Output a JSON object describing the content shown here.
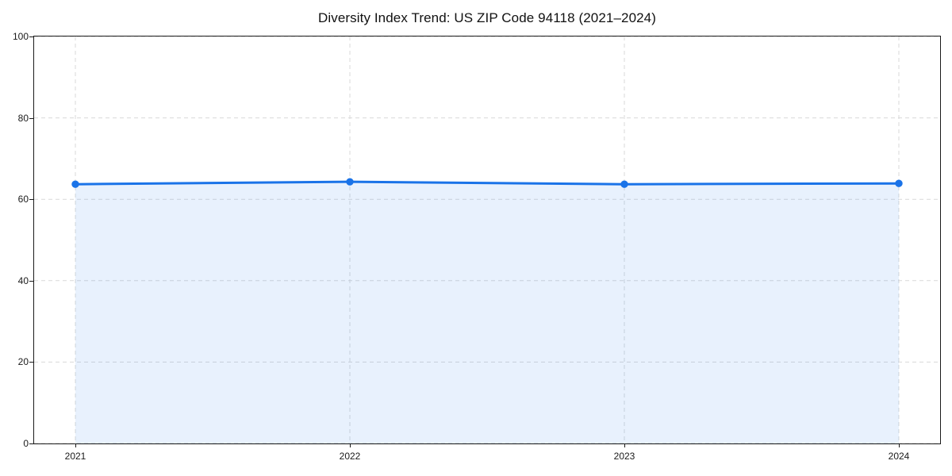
{
  "chart_data": {
    "type": "area",
    "title": "Diversity Index Trend: US ZIP Code 94118 (2021–2024)",
    "x": [
      "2021",
      "2022",
      "2023",
      "2024"
    ],
    "series": [
      {
        "name": "Diversity Index",
        "values": [
          63.7,
          64.3,
          63.7,
          63.9
        ]
      }
    ],
    "xlabel": "",
    "ylabel": "",
    "ylim": [
      0,
      100
    ],
    "y_ticks": [
      0,
      20,
      40,
      60,
      80,
      100
    ],
    "grid": "dashed-both-axes",
    "legend_position": "none",
    "colors": {
      "line": "#1a73e8",
      "marker": "#1a73e8",
      "fill": "rgba(26,115,232,0.10)",
      "grid": "#d9d9d9",
      "spine": "#1a1a1a",
      "text": "#1a1a1a",
      "title_text": "#111111",
      "background": "#ffffff"
    }
  }
}
